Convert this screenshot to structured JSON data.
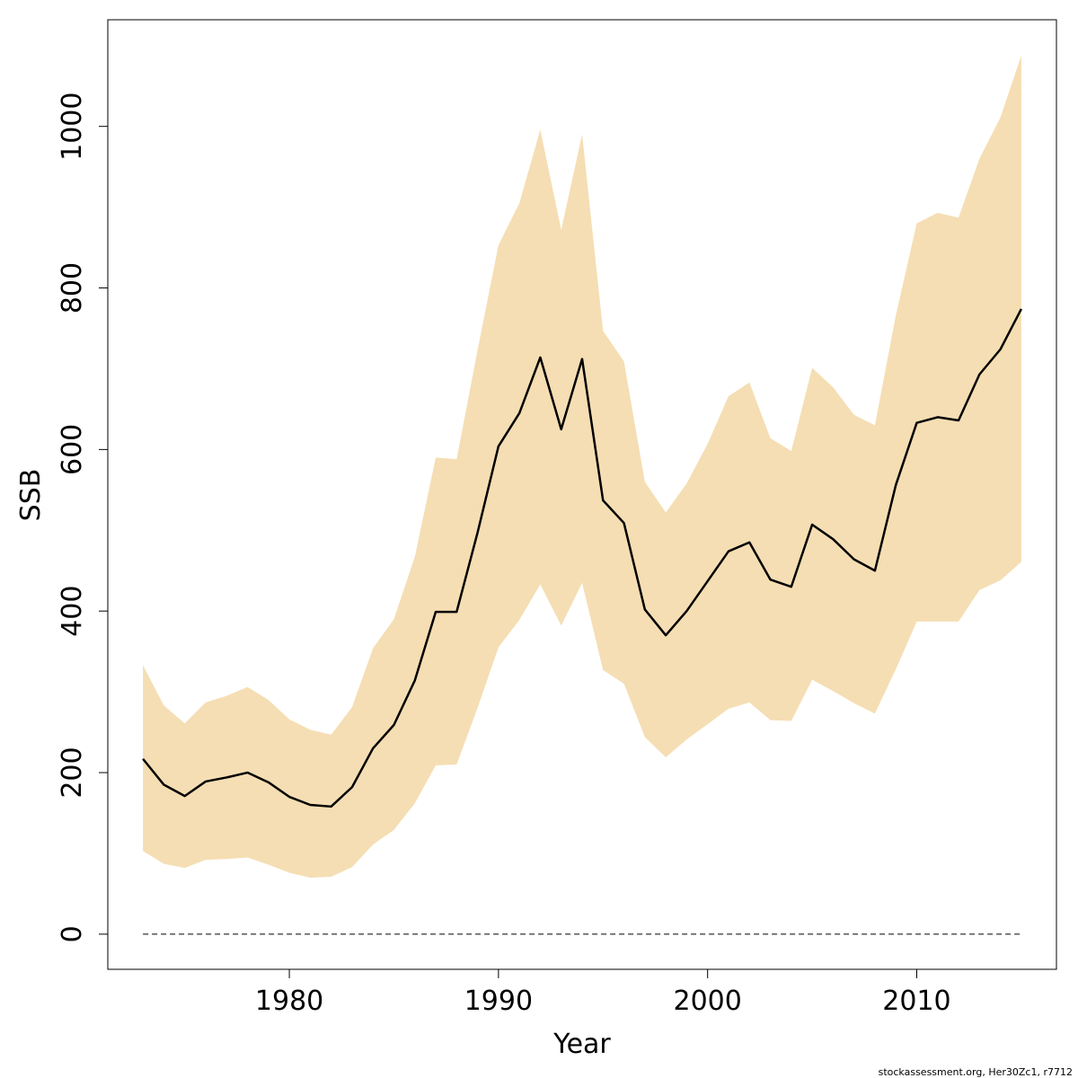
{
  "chart_data": {
    "type": "line",
    "xlabel": "Year",
    "ylabel": "SSB",
    "footer": "stockassessment.org, Her30Zc1, r7712",
    "x": [
      1973,
      1974,
      1975,
      1976,
      1977,
      1978,
      1979,
      1980,
      1981,
      1982,
      1983,
      1984,
      1985,
      1986,
      1987,
      1988,
      1989,
      1990,
      1991,
      1992,
      1993,
      1994,
      1995,
      1996,
      1997,
      1998,
      1999,
      2000,
      2001,
      2002,
      2003,
      2004,
      2005,
      2006,
      2007,
      2008,
      2009,
      2010,
      2011,
      2012,
      2013,
      2014,
      2015
    ],
    "values": [
      217,
      185,
      171,
      189,
      194,
      200,
      188,
      170,
      160,
      158,
      182,
      230,
      259,
      314,
      399,
      399,
      497,
      604,
      645,
      714,
      625,
      712,
      537,
      509,
      402,
      370,
      400,
      437,
      474,
      485,
      439,
      430,
      507,
      489,
      464,
      450,
      556,
      633,
      640,
      636,
      693,
      724,
      774
    ],
    "lower": [
      103,
      87,
      82,
      92,
      93,
      95,
      86,
      76,
      70,
      71,
      83,
      111,
      129,
      162,
      209,
      210,
      280,
      355,
      389,
      433,
      382,
      435,
      327,
      310,
      244,
      219,
      241,
      260,
      279,
      287,
      265,
      264,
      315,
      301,
      286,
      273,
      328,
      387,
      387,
      387,
      426,
      438,
      461
    ],
    "upper": [
      333,
      283,
      261,
      287,
      295,
      306,
      290,
      266,
      253,
      247,
      281,
      354,
      390,
      467,
      590,
      588,
      723,
      853,
      905,
      996,
      872,
      990,
      747,
      709,
      560,
      522,
      558,
      607,
      666,
      683,
      614,
      598,
      701,
      677,
      643,
      630,
      766,
      880,
      893,
      887,
      960,
      1011,
      1088
    ],
    "color": "#000000",
    "band_color": "#f5deb3",
    "hline": 0,
    "xlim": [
      1971.32,
      2016.68
    ],
    "ylim": [
      -43.5,
      1132
    ],
    "xticks": [
      1980,
      1990,
      2000,
      2010
    ],
    "yticks": [
      0,
      200,
      400,
      600,
      800,
      1000
    ]
  }
}
